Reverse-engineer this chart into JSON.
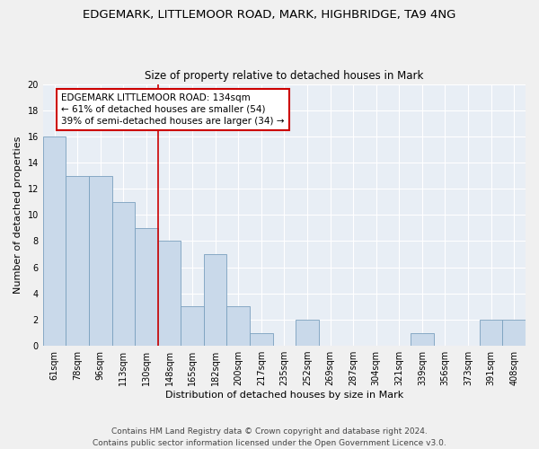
{
  "title": "EDGEMARK, LITTLEMOOR ROAD, MARK, HIGHBRIDGE, TA9 4NG",
  "subtitle": "Size of property relative to detached houses in Mark",
  "xlabel": "Distribution of detached houses by size in Mark",
  "ylabel": "Number of detached properties",
  "categories": [
    "61sqm",
    "78sqm",
    "96sqm",
    "113sqm",
    "130sqm",
    "148sqm",
    "165sqm",
    "182sqm",
    "200sqm",
    "217sqm",
    "235sqm",
    "252sqm",
    "269sqm",
    "287sqm",
    "304sqm",
    "321sqm",
    "339sqm",
    "356sqm",
    "373sqm",
    "391sqm",
    "408sqm"
  ],
  "values": [
    16,
    13,
    13,
    11,
    9,
    8,
    3,
    7,
    3,
    1,
    0,
    2,
    0,
    0,
    0,
    0,
    1,
    0,
    0,
    2,
    2
  ],
  "bar_color": "#c9d9ea",
  "bar_edge_color": "#7aa0be",
  "red_line_x": 4.5,
  "annotation_text": "EDGEMARK LITTLEMOOR ROAD: 134sqm\n← 61% of detached houses are smaller (54)\n39% of semi-detached houses are larger (34) →",
  "annotation_box_color": "#ffffff",
  "annotation_box_edge": "#cc0000",
  "vline_color": "#cc0000",
  "ylim": [
    0,
    20
  ],
  "yticks": [
    0,
    2,
    4,
    6,
    8,
    10,
    12,
    14,
    16,
    18,
    20
  ],
  "footer_line1": "Contains HM Land Registry data © Crown copyright and database right 2024.",
  "footer_line2": "Contains public sector information licensed under the Open Government Licence v3.0.",
  "bg_color": "#e8eef5",
  "fig_color": "#f0f0f0",
  "grid_color": "#ffffff",
  "title_fontsize": 9.5,
  "subtitle_fontsize": 8.5,
  "axis_label_fontsize": 8,
  "tick_fontsize": 7,
  "annotation_fontsize": 7.5,
  "footer_fontsize": 6.5
}
